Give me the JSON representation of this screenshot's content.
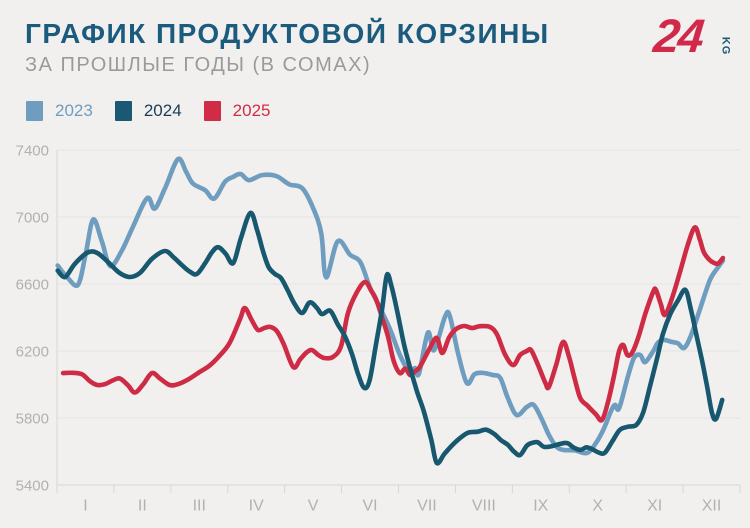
{
  "header": {
    "title": "ГРАФИК ПРОДУКТОВОЙ КОРЗИНЫ",
    "subtitle": "ЗА ПРОШЛЫЕ ГОДЫ (В СОМАХ)",
    "logo_text": "24",
    "logo_suffix": "KG"
  },
  "legend": [
    {
      "label": "2023",
      "swatch_color": "#6F9DBF",
      "label_color": "#6F9DBF"
    },
    {
      "label": "2024",
      "swatch_color": "#1A5873",
      "label_color": "#1C3D57"
    },
    {
      "label": "2025",
      "swatch_color": "#D12C46",
      "label_color": "#D12C46"
    }
  ],
  "colors": {
    "background": "#F1F0EF",
    "title": "#1B5B7E",
    "subtitle": "#9A9A9A",
    "gridline": "#E4E3E2",
    "axis_line": "#D7D6D5",
    "axis_text": "#B2B1B1",
    "series_2023": "#6F9DBF",
    "series_2024": "#17586F",
    "series_2025": "#CE2B45",
    "logo_red": "#D2294B",
    "logo_teal": "#1D5A74"
  },
  "chart_data": {
    "type": "line",
    "title": "ГРАФИК ПРОДУКТОВОЙ КОРЗИНЫ",
    "subtitle": "ЗА ПРОШЛЫЕ ГОДЫ (В СОМАХ)",
    "unit": "som (KGS)",
    "x_axis": {
      "labels": [
        "I",
        "II",
        "III",
        "IV",
        "V",
        "VI",
        "VII",
        "VIII",
        "IX",
        "X",
        "XI",
        "XII"
      ],
      "meaning": "months of the year",
      "point_x": "fraction 0..1 across the year axis"
    },
    "y_axis": {
      "ticks": [
        7400,
        7000,
        6600,
        6200,
        5800,
        5400
      ],
      "range": [
        5400,
        7400
      ]
    },
    "grid": "horizontal gridlines only",
    "legend_position": "top-left",
    "draw_order": [
      "2023",
      "2025",
      "2024"
    ],
    "series": [
      {
        "name": "2023",
        "color": "#6F9DBF",
        "points": [
          [
            0.001,
            6710
          ],
          [
            0.016,
            6635
          ],
          [
            0.031,
            6597
          ],
          [
            0.042,
            6780
          ],
          [
            0.053,
            6985
          ],
          [
            0.066,
            6850
          ],
          [
            0.078,
            6707
          ],
          [
            0.095,
            6800
          ],
          [
            0.111,
            6940
          ],
          [
            0.132,
            7113
          ],
          [
            0.143,
            7050
          ],
          [
            0.158,
            7170
          ],
          [
            0.177,
            7345
          ],
          [
            0.189,
            7270
          ],
          [
            0.199,
            7200
          ],
          [
            0.217,
            7160
          ],
          [
            0.23,
            7110
          ],
          [
            0.246,
            7210
          ],
          [
            0.258,
            7240
          ],
          [
            0.269,
            7257
          ],
          [
            0.281,
            7220
          ],
          [
            0.3,
            7250
          ],
          [
            0.321,
            7245
          ],
          [
            0.34,
            7195
          ],
          [
            0.359,
            7172
          ],
          [
            0.375,
            7054
          ],
          [
            0.387,
            6900
          ],
          [
            0.394,
            6640
          ],
          [
            0.411,
            6855
          ],
          [
            0.429,
            6775
          ],
          [
            0.444,
            6731
          ],
          [
            0.458,
            6582
          ],
          [
            0.473,
            6457
          ],
          [
            0.488,
            6326
          ],
          [
            0.502,
            6176
          ],
          [
            0.517,
            6068
          ],
          [
            0.524,
            6098
          ],
          [
            0.53,
            6065
          ],
          [
            0.543,
            6310
          ],
          [
            0.552,
            6205
          ],
          [
            0.568,
            6403
          ],
          [
            0.575,
            6411
          ],
          [
            0.587,
            6190
          ],
          [
            0.6,
            6009
          ],
          [
            0.611,
            6060
          ],
          [
            0.622,
            6070
          ],
          [
            0.638,
            6057
          ],
          [
            0.649,
            6039
          ],
          [
            0.66,
            5920
          ],
          [
            0.673,
            5818
          ],
          [
            0.688,
            5866
          ],
          [
            0.698,
            5878
          ],
          [
            0.709,
            5800
          ],
          [
            0.72,
            5700
          ],
          [
            0.731,
            5630
          ],
          [
            0.742,
            5609
          ],
          [
            0.758,
            5607
          ],
          [
            0.776,
            5591
          ],
          [
            0.789,
            5650
          ],
          [
            0.801,
            5740
          ],
          [
            0.811,
            5840
          ],
          [
            0.817,
            5878
          ],
          [
            0.823,
            5858
          ],
          [
            0.836,
            6050
          ],
          [
            0.845,
            6160
          ],
          [
            0.854,
            6176
          ],
          [
            0.861,
            6134
          ],
          [
            0.873,
            6200
          ],
          [
            0.88,
            6250
          ],
          [
            0.889,
            6266
          ],
          [
            0.899,
            6255
          ],
          [
            0.909,
            6246
          ],
          [
            0.918,
            6218
          ],
          [
            0.928,
            6290
          ],
          [
            0.941,
            6445
          ],
          [
            0.956,
            6624
          ],
          [
            0.968,
            6700
          ],
          [
            0.975,
            6740
          ]
        ]
      },
      {
        "name": "2024",
        "color": "#17586F",
        "points": [
          [
            0.001,
            6680
          ],
          [
            0.012,
            6642
          ],
          [
            0.026,
            6720
          ],
          [
            0.045,
            6788
          ],
          [
            0.059,
            6785
          ],
          [
            0.075,
            6730
          ],
          [
            0.092,
            6665
          ],
          [
            0.107,
            6642
          ],
          [
            0.122,
            6668
          ],
          [
            0.139,
            6750
          ],
          [
            0.158,
            6797
          ],
          [
            0.171,
            6758
          ],
          [
            0.183,
            6712
          ],
          [
            0.195,
            6672
          ],
          [
            0.205,
            6660
          ],
          [
            0.217,
            6725
          ],
          [
            0.227,
            6790
          ],
          [
            0.236,
            6820
          ],
          [
            0.247,
            6780
          ],
          [
            0.258,
            6725
          ],
          [
            0.269,
            6870
          ],
          [
            0.283,
            7024
          ],
          [
            0.293,
            6922
          ],
          [
            0.302,
            6790
          ],
          [
            0.31,
            6700
          ],
          [
            0.319,
            6660
          ],
          [
            0.328,
            6635
          ],
          [
            0.338,
            6560
          ],
          [
            0.348,
            6480
          ],
          [
            0.359,
            6427
          ],
          [
            0.37,
            6490
          ],
          [
            0.381,
            6455
          ],
          [
            0.388,
            6420
          ],
          [
            0.4,
            6440
          ],
          [
            0.411,
            6360
          ],
          [
            0.422,
            6284
          ],
          [
            0.432,
            6180
          ],
          [
            0.441,
            6060
          ],
          [
            0.45,
            5979
          ],
          [
            0.458,
            6030
          ],
          [
            0.467,
            6240
          ],
          [
            0.476,
            6450
          ],
          [
            0.483,
            6654
          ],
          [
            0.49,
            6582
          ],
          [
            0.499,
            6420
          ],
          [
            0.508,
            6240
          ],
          [
            0.517,
            6100
          ],
          [
            0.527,
            5960
          ],
          [
            0.537,
            5840
          ],
          [
            0.548,
            5670
          ],
          [
            0.556,
            5532
          ],
          [
            0.567,
            5585
          ],
          [
            0.578,
            5635
          ],
          [
            0.59,
            5680
          ],
          [
            0.602,
            5712
          ],
          [
            0.616,
            5718
          ],
          [
            0.628,
            5730
          ],
          [
            0.64,
            5705
          ],
          [
            0.65,
            5668
          ],
          [
            0.66,
            5640
          ],
          [
            0.669,
            5600
          ],
          [
            0.678,
            5579
          ],
          [
            0.688,
            5635
          ],
          [
            0.696,
            5652
          ],
          [
            0.704,
            5655
          ],
          [
            0.713,
            5628
          ],
          [
            0.725,
            5632
          ],
          [
            0.736,
            5645
          ],
          [
            0.747,
            5650
          ],
          [
            0.757,
            5622
          ],
          [
            0.767,
            5610
          ],
          [
            0.775,
            5625
          ],
          [
            0.783,
            5615
          ],
          [
            0.794,
            5592
          ],
          [
            0.802,
            5592
          ],
          [
            0.813,
            5660
          ],
          [
            0.824,
            5729
          ],
          [
            0.836,
            5748
          ],
          [
            0.848,
            5758
          ],
          [
            0.858,
            5830
          ],
          [
            0.868,
            5985
          ],
          [
            0.879,
            6164
          ],
          [
            0.887,
            6300
          ],
          [
            0.898,
            6420
          ],
          [
            0.909,
            6500
          ],
          [
            0.92,
            6565
          ],
          [
            0.928,
            6450
          ],
          [
            0.937,
            6280
          ],
          [
            0.944,
            6150
          ],
          [
            0.952,
            5985
          ],
          [
            0.959,
            5830
          ],
          [
            0.965,
            5795
          ],
          [
            0.974,
            5908
          ]
        ]
      },
      {
        "name": "2025",
        "color": "#CE2B45",
        "points": [
          [
            0.009,
            6068
          ],
          [
            0.023,
            6070
          ],
          [
            0.037,
            6060
          ],
          [
            0.048,
            6020
          ],
          [
            0.059,
            5997
          ],
          [
            0.07,
            6002
          ],
          [
            0.082,
            6025
          ],
          [
            0.092,
            6036
          ],
          [
            0.104,
            5995
          ],
          [
            0.114,
            5952
          ],
          [
            0.126,
            6000
          ],
          [
            0.139,
            6068
          ],
          [
            0.151,
            6035
          ],
          [
            0.165,
            5997
          ],
          [
            0.177,
            6002
          ],
          [
            0.192,
            6030
          ],
          [
            0.209,
            6075
          ],
          [
            0.224,
            6115
          ],
          [
            0.239,
            6176
          ],
          [
            0.253,
            6250
          ],
          [
            0.268,
            6390
          ],
          [
            0.275,
            6457
          ],
          [
            0.285,
            6385
          ],
          [
            0.294,
            6326
          ],
          [
            0.303,
            6336
          ],
          [
            0.312,
            6344
          ],
          [
            0.322,
            6318
          ],
          [
            0.332,
            6240
          ],
          [
            0.346,
            6104
          ],
          [
            0.356,
            6150
          ],
          [
            0.365,
            6190
          ],
          [
            0.373,
            6206
          ],
          [
            0.382,
            6178
          ],
          [
            0.391,
            6158
          ],
          [
            0.404,
            6164
          ],
          [
            0.416,
            6230
          ],
          [
            0.426,
            6427
          ],
          [
            0.439,
            6550
          ],
          [
            0.451,
            6612
          ],
          [
            0.46,
            6560
          ],
          [
            0.467,
            6510
          ],
          [
            0.476,
            6400
          ],
          [
            0.485,
            6280
          ],
          [
            0.493,
            6140
          ],
          [
            0.502,
            6068
          ],
          [
            0.51,
            6095
          ],
          [
            0.517,
            6057
          ],
          [
            0.524,
            6078
          ],
          [
            0.531,
            6104
          ],
          [
            0.545,
            6210
          ],
          [
            0.556,
            6278
          ],
          [
            0.564,
            6188
          ],
          [
            0.574,
            6280
          ],
          [
            0.584,
            6330
          ],
          [
            0.596,
            6349
          ],
          [
            0.608,
            6337
          ],
          [
            0.619,
            6348
          ],
          [
            0.634,
            6343
          ],
          [
            0.644,
            6300
          ],
          [
            0.656,
            6180
          ],
          [
            0.668,
            6116
          ],
          [
            0.678,
            6176
          ],
          [
            0.688,
            6200
          ],
          [
            0.694,
            6206
          ],
          [
            0.704,
            6120
          ],
          [
            0.715,
            6010
          ],
          [
            0.72,
            5985
          ],
          [
            0.731,
            6120
          ],
          [
            0.741,
            6254
          ],
          [
            0.75,
            6160
          ],
          [
            0.757,
            6050
          ],
          [
            0.766,
            5920
          ],
          [
            0.777,
            5872
          ],
          [
            0.789,
            5822
          ],
          [
            0.798,
            5788
          ],
          [
            0.807,
            5900
          ],
          [
            0.816,
            6060
          ],
          [
            0.823,
            6200
          ],
          [
            0.829,
            6236
          ],
          [
            0.835,
            6176
          ],
          [
            0.842,
            6190
          ],
          [
            0.851,
            6280
          ],
          [
            0.862,
            6430
          ],
          [
            0.873,
            6555
          ],
          [
            0.877,
            6564
          ],
          [
            0.884,
            6480
          ],
          [
            0.89,
            6415
          ],
          [
            0.9,
            6510
          ],
          [
            0.912,
            6670
          ],
          [
            0.924,
            6840
          ],
          [
            0.934,
            6938
          ],
          [
            0.941,
            6868
          ],
          [
            0.947,
            6790
          ],
          [
            0.955,
            6745
          ],
          [
            0.962,
            6726
          ],
          [
            0.968,
            6722
          ],
          [
            0.975,
            6755
          ]
        ]
      }
    ]
  }
}
